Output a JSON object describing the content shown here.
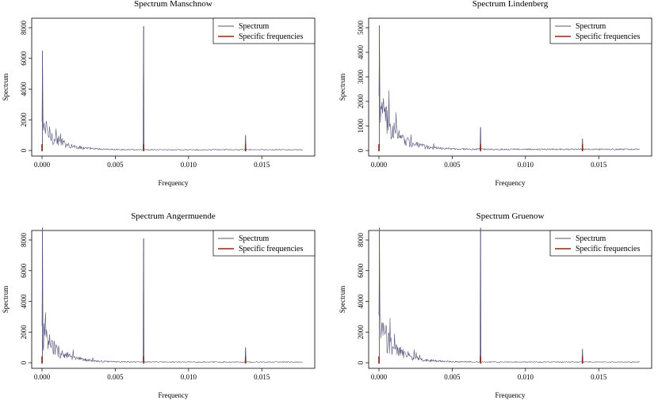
{
  "colors": {
    "spectrum": "#55557a",
    "specific": "#8b2a1a"
  },
  "chart_data": [
    {
      "type": "line",
      "title": "Spectrum Manschnow",
      "xlabel": "Frequency",
      "ylabel": "Spectrum",
      "xlim": [
        0,
        0.0178
      ],
      "ylim": [
        0,
        8000
      ],
      "x_ticks": [
        "0.000",
        "0.005",
        "0.010",
        "0.015"
      ],
      "y_ticks": [
        "0",
        "2000",
        "4000",
        "6000",
        "8000"
      ],
      "legend": {
        "position": "top-right",
        "entries": [
          "Spectrum",
          "Specific frequencies"
        ]
      },
      "peaks": [
        {
          "x": 3e-05,
          "y": 6500
        },
        {
          "x": 0.00694,
          "y": 8100
        },
        {
          "x": 0.01389,
          "y": 1000
        }
      ],
      "low_freq_level": 2000,
      "specific_frequencies": [
        0.0,
        0.00694,
        0.01389
      ]
    },
    {
      "type": "line",
      "title": "Spectrum Lindenberg",
      "xlabel": "Frequency",
      "ylabel": "Spectrum",
      "xlim": [
        0,
        0.0178
      ],
      "ylim": [
        0,
        5000
      ],
      "x_ticks": [
        "0.000",
        "0.005",
        "0.010",
        "0.015"
      ],
      "y_ticks": [
        "0",
        "1000",
        "2000",
        "3000",
        "4000",
        "5000"
      ],
      "legend": {
        "position": "top-right",
        "entries": [
          "Spectrum",
          "Specific frequencies"
        ]
      },
      "peaks": [
        {
          "x": 3e-05,
          "y": 5100
        },
        {
          "x": 0.00694,
          "y": 950
        },
        {
          "x": 0.01389,
          "y": 480
        }
      ],
      "low_freq_level": 2300,
      "specific_frequencies": [
        0.0,
        0.00694,
        0.01389
      ]
    },
    {
      "type": "line",
      "title": "Spectrum Angermuende",
      "xlabel": "Frequency",
      "ylabel": "Spectrum",
      "xlim": [
        0,
        0.0178
      ],
      "ylim": [
        0,
        8000
      ],
      "x_ticks": [
        "0.000",
        "0.005",
        "0.010",
        "0.015"
      ],
      "y_ticks": [
        "0",
        "2000",
        "4000",
        "6000",
        "8000"
      ],
      "legend": {
        "position": "top-right",
        "entries": [
          "Spectrum",
          "Specific frequencies"
        ]
      },
      "peaks": [
        {
          "x": 3e-05,
          "y": 8800
        },
        {
          "x": 0.00694,
          "y": 8100
        },
        {
          "x": 0.01389,
          "y": 1000
        }
      ],
      "low_freq_level": 2400,
      "specific_frequencies": [
        0.0,
        0.00694,
        0.01389
      ]
    },
    {
      "type": "line",
      "title": "Spectrum Gruenow",
      "xlabel": "Frequency",
      "ylabel": "Spectrum",
      "xlim": [
        0,
        0.0178
      ],
      "ylim": [
        0,
        8000
      ],
      "x_ticks": [
        "0.000",
        "0.005",
        "0.010",
        "0.015"
      ],
      "y_ticks": [
        "0",
        "2000",
        "4000",
        "6000",
        "8000"
      ],
      "legend": {
        "position": "top-right",
        "entries": [
          "Spectrum",
          "Specific frequencies"
        ]
      },
      "peaks": [
        {
          "x": 3e-05,
          "y": 8800
        },
        {
          "x": 0.00694,
          "y": 8800
        },
        {
          "x": 0.01389,
          "y": 900
        }
      ],
      "low_freq_level": 3000,
      "specific_frequencies": [
        0.0,
        0.00694,
        0.01389
      ]
    }
  ]
}
